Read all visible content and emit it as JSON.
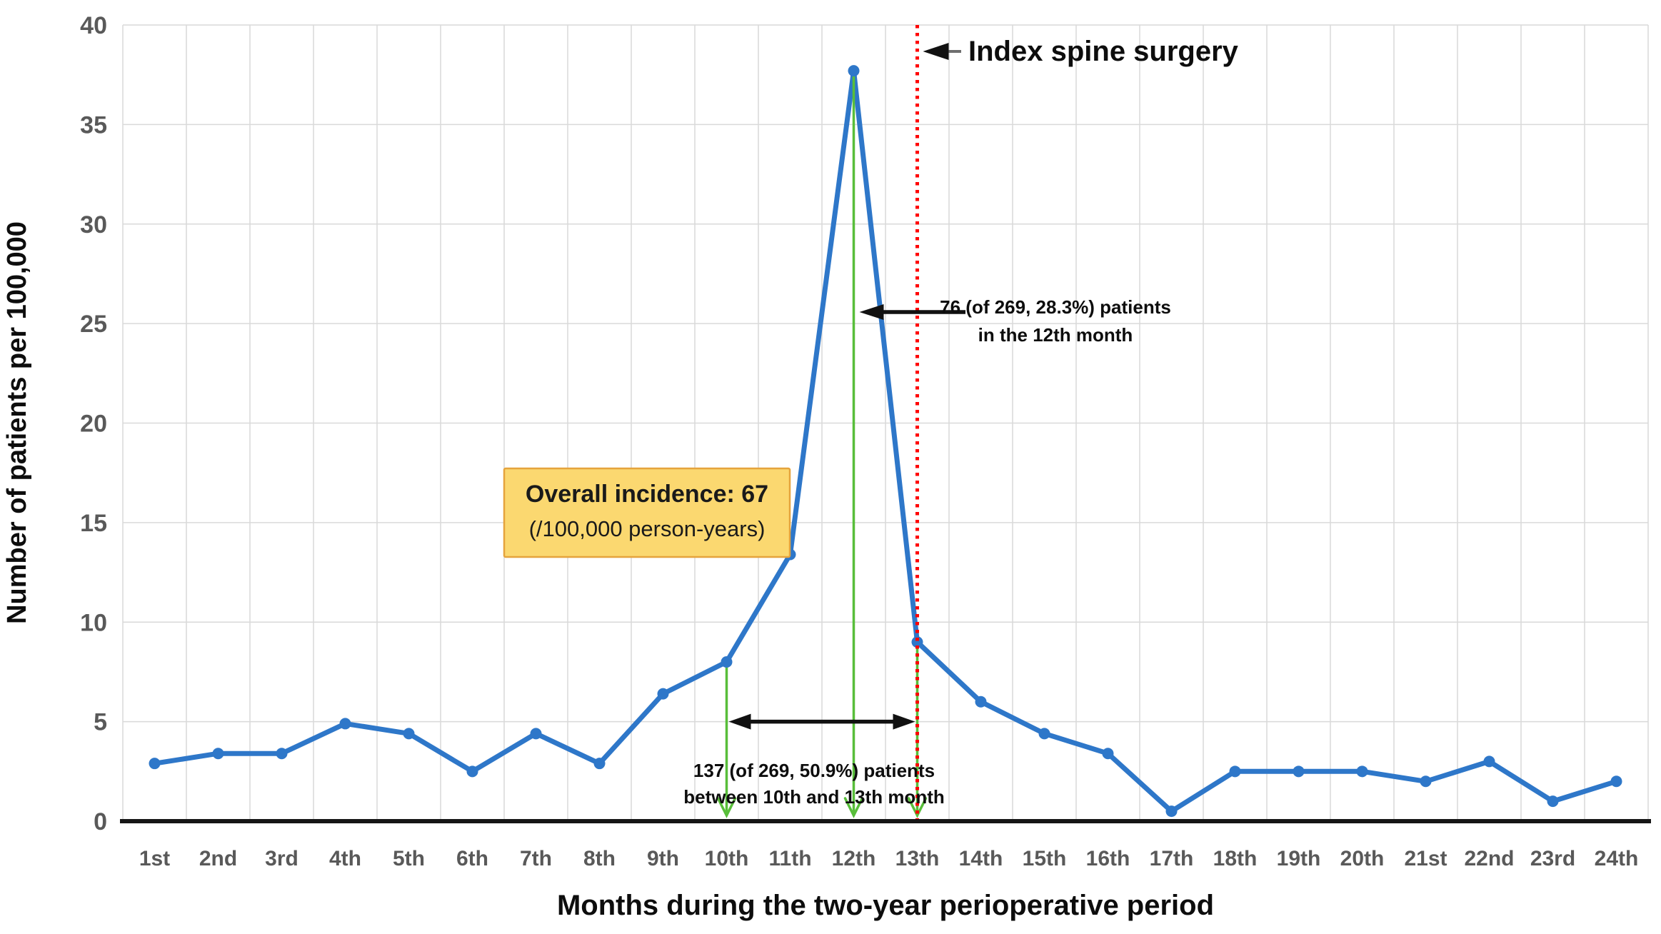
{
  "chart_data": {
    "type": "line",
    "categories": [
      "1st",
      "2nd",
      "3rd",
      "4th",
      "5th",
      "6th",
      "7th",
      "8th",
      "9th",
      "10th",
      "11th",
      "12th",
      "13th",
      "14th",
      "15th",
      "16th",
      "17th",
      "18th",
      "19th",
      "20th",
      "21st",
      "22nd",
      "23rd",
      "24th"
    ],
    "values": [
      2.9,
      3.4,
      3.4,
      4.9,
      4.4,
      2.5,
      4.4,
      2.9,
      6.4,
      8.0,
      13.4,
      37.7,
      9.0,
      6.0,
      4.4,
      3.4,
      0.5,
      2.5,
      2.5,
      2.5,
      2.0,
      3.0,
      1.0,
      2.0
    ],
    "xlabel": "Months during the two-year perioperative period",
    "ylabel": "Number of patients per 100,000",
    "ylim": [
      0,
      40
    ],
    "yticks": [
      0,
      5,
      10,
      15,
      20,
      25,
      30,
      35,
      40
    ],
    "grid": true,
    "legend": "none",
    "line_color": "#2E77C9",
    "marker": "circle"
  },
  "annotations": {
    "index_surgery": {
      "label": "Index spine surgery",
      "line_month_position": 12.5,
      "line_color": "#FF0000",
      "line_style": "dotted"
    },
    "peak_note": {
      "line1": "76 (of 269, 28.3%) patients",
      "line2": "in the 12th month",
      "points_to_month": 12
    },
    "range_note": {
      "line1": "137 (of 269, 50.9%) patients",
      "line2": "between 10th and 13th month",
      "from_month": 10,
      "to_month": 13,
      "arrow_at_value": 5
    },
    "incidence_box": {
      "line1": "Overall incidence: 67",
      "line2": "(/100,000 person-years)",
      "fill": "#FBD870",
      "border": "#E5A33D"
    },
    "down_arrows": {
      "months": [
        10,
        12,
        13
      ],
      "color": "#58BE3A"
    }
  },
  "colors": {
    "axis": "#161616",
    "gridline": "#D9D9D9",
    "tick_label": "#595959",
    "annotation_text": "#0D0D0D",
    "arrow_black": "#111111",
    "arrow_gray_shaft": "#6F6F6F",
    "background": "#FFFFFF"
  }
}
